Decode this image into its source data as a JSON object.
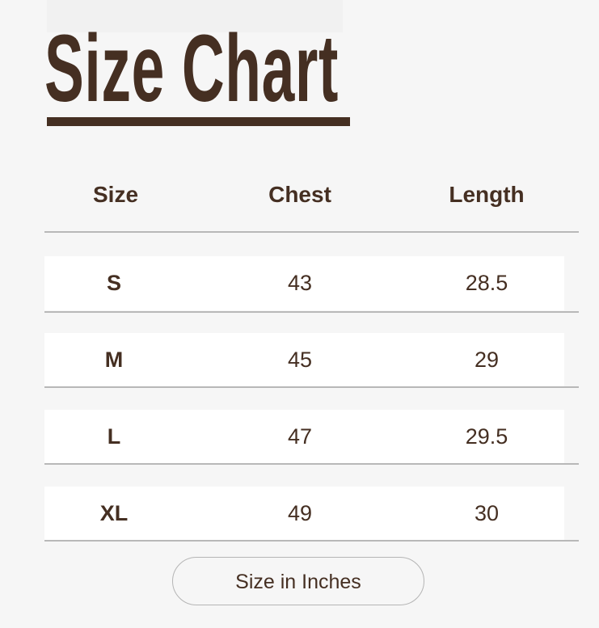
{
  "title": "Size Chart",
  "colors": {
    "text": "#452f22",
    "background": "#f6f6f6",
    "row": "#ffffff",
    "divider": "#b8b8b8"
  },
  "table": {
    "headers": [
      "Size",
      "Chest",
      "Length"
    ],
    "rows": [
      [
        "S",
        "43",
        "28.5"
      ],
      [
        "M",
        "45",
        "29"
      ],
      [
        "L",
        "47",
        "29.5"
      ],
      [
        "XL",
        "49",
        "30"
      ]
    ]
  },
  "unit_button": "Size in Inches"
}
